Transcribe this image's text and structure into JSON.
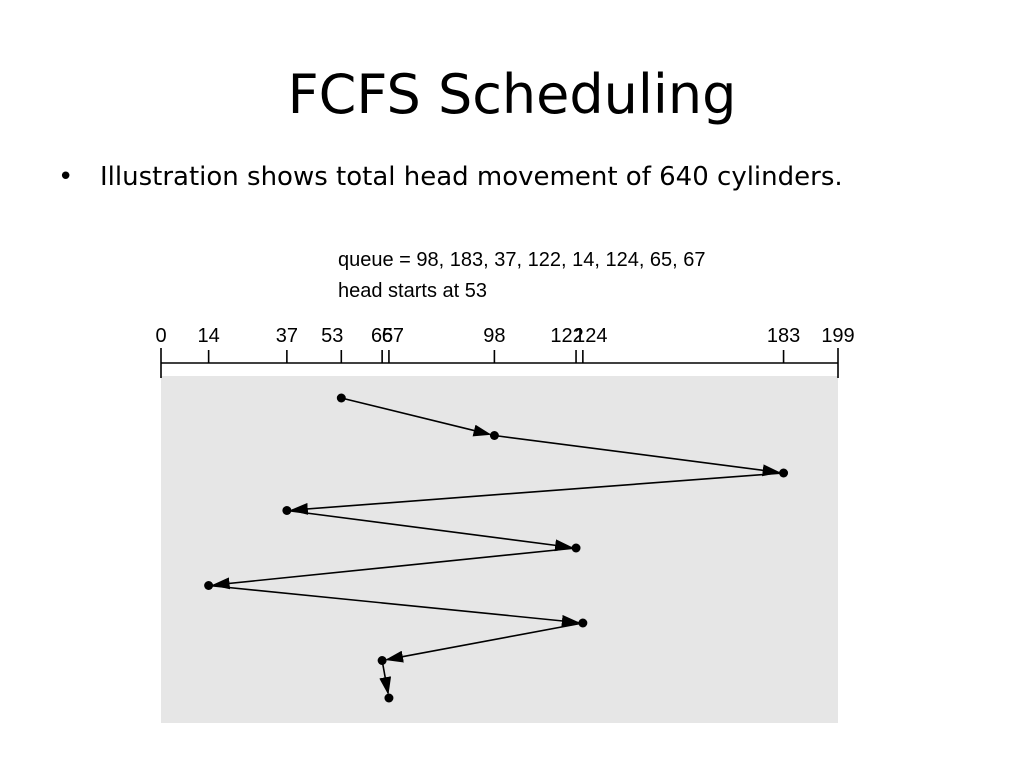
{
  "slide": {
    "title": "FCFS Scheduling",
    "bullet": "Illustration shows total head movement of 640 cylinders."
  },
  "diagram": {
    "queue_caption": "queue = 98, 183, 37, 122, 14, 124, 65, 67",
    "head_caption": "head starts at 53",
    "axis_min": 0,
    "axis_max": 199,
    "axis_ticks": [
      0,
      14,
      37,
      53,
      65,
      67,
      98,
      122,
      124,
      183,
      199
    ],
    "head_sequence": [
      53,
      98,
      183,
      37,
      122,
      14,
      124,
      65,
      67
    ],
    "colors": {
      "panel": "#e6e6e6",
      "line": "#000000"
    }
  }
}
